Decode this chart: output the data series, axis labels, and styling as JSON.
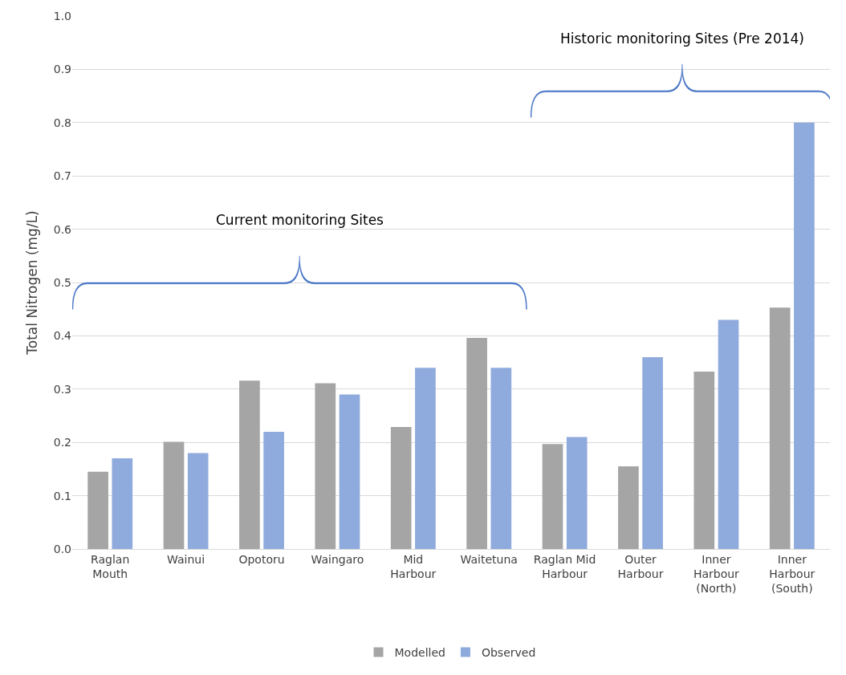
{
  "chart_data": {
    "type": "bar",
    "ylabel": "Total Nitrogen (mg/L)",
    "categories": [
      "Raglan Mouth",
      "Wainui",
      "Opotoru",
      "Waingaro",
      "Mid Harbour",
      "Waitetuna",
      "Raglan Mid Harbour",
      "Outer Harbour",
      "Inner Harbour (North)",
      "Inner Harbour (South)"
    ],
    "series": [
      {
        "name": "Modelled",
        "color": "#a5a5a5",
        "values": [
          0.145,
          0.201,
          0.316,
          0.311,
          0.229,
          0.396,
          0.197,
          0.155,
          0.333,
          0.453
        ]
      },
      {
        "name": "Observed",
        "color": "#8faadc",
        "values": [
          0.17,
          0.18,
          0.22,
          0.29,
          0.34,
          0.34,
          0.21,
          0.36,
          0.43,
          0.8
        ]
      }
    ],
    "ylim": [
      0,
      1.0
    ],
    "yticks": [
      {
        "value": 0,
        "label": "0.0"
      },
      0.1,
      0.2,
      0.3,
      0.4,
      0.5,
      0.6,
      0.7,
      0.8,
      0.9,
      {
        "value": 1.0,
        "label": "1.0"
      }
    ],
    "annotations": [
      "Current monitoring Sites",
      "Historic monitoring Sites (Pre 2014)"
    ],
    "grid": "y",
    "legend": "bottom"
  }
}
